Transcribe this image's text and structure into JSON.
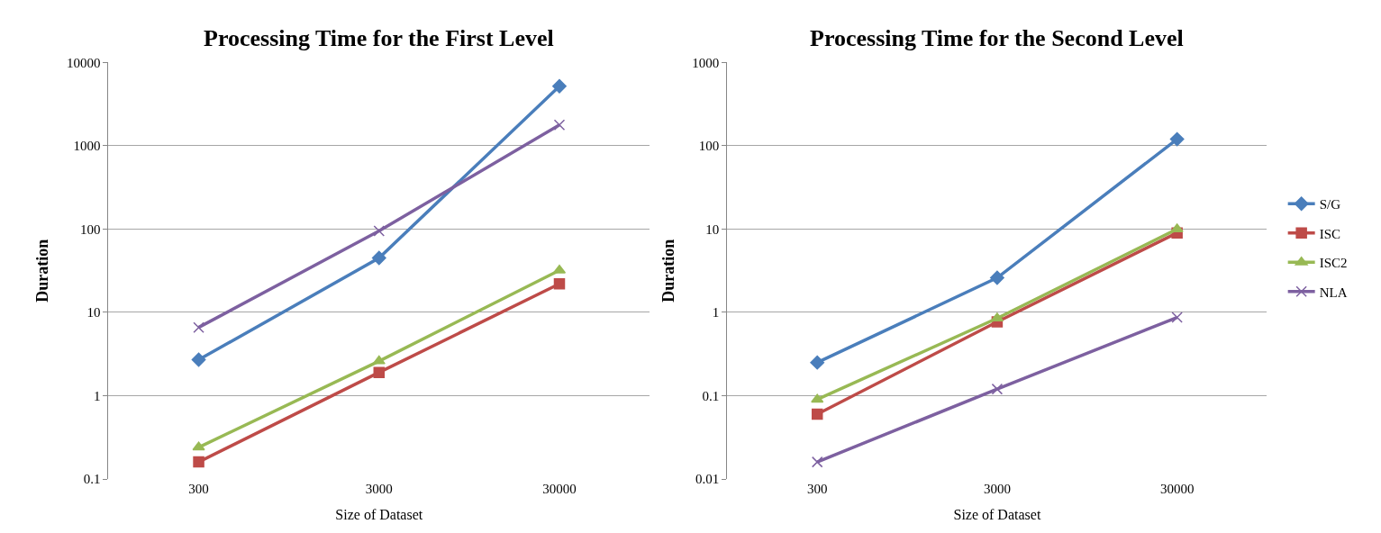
{
  "chart_data": [
    {
      "type": "line",
      "title": "Processing Time for the First Level",
      "xlabel": "Size of Dataset",
      "ylabel": "Duration",
      "categories": [
        "300",
        "3000",
        "30000"
      ],
      "log": "y",
      "ylim": [
        0.1,
        10000
      ],
      "yticks": [
        0.1,
        1,
        10,
        100,
        1000,
        10000
      ],
      "grid": "y",
      "legend": false,
      "series": [
        {
          "color": "#4a7ebb",
          "marker": "diamond",
          "values": [
            2.7,
            45,
            5200
          ]
        },
        {
          "color": "#be4b48",
          "marker": "square",
          "values": [
            0.16,
            1.9,
            22
          ]
        },
        {
          "color": "#98b954",
          "marker": "triangle",
          "values": [
            0.24,
            2.6,
            32
          ]
        },
        {
          "color": "#7d60a0",
          "marker": "cross",
          "values": [
            6.6,
            95,
            1780
          ]
        }
      ]
    },
    {
      "type": "line",
      "title": "Processing Time for the Second Level",
      "xlabel": "Size of Dataset",
      "ylabel": "Duration",
      "categories": [
        "300",
        "3000",
        "30000"
      ],
      "log": "y",
      "ylim": [
        0.01,
        1000
      ],
      "yticks": [
        0.01,
        0.1,
        1,
        10,
        100,
        1000
      ],
      "grid": "y",
      "legend": "right",
      "series": [
        {
          "name": "S/G",
          "color": "#4a7ebb",
          "marker": "diamond",
          "values": [
            0.25,
            2.6,
            120
          ]
        },
        {
          "name": "ISC",
          "color": "#be4b48",
          "marker": "square",
          "values": [
            0.06,
            0.77,
            9
          ]
        },
        {
          "name": "ISC2",
          "color": "#98b954",
          "marker": "triangle",
          "values": [
            0.09,
            0.85,
            10
          ]
        },
        {
          "name": "NLA",
          "color": "#7d60a0",
          "marker": "cross",
          "values": [
            0.016,
            0.12,
            0.87
          ]
        }
      ]
    }
  ]
}
